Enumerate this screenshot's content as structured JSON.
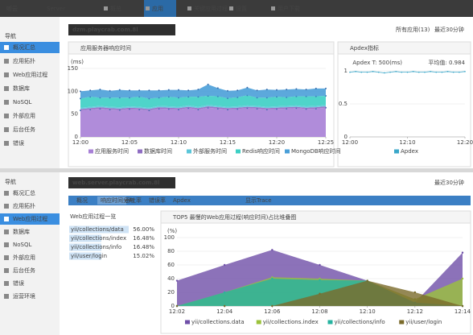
{
  "top": {
    "header": {
      "logo": "听云",
      "product": "Server",
      "nav": [
        "概览",
        "应用",
        "关键应用过程",
        "设置",
        "用户下载"
      ],
      "active_nav": 1
    },
    "sidebar": {
      "title": "导航",
      "items": [
        "概况汇总",
        "应用拓扑",
        "Web应用过程",
        "数据库",
        "NoSQL",
        "外部应用",
        "后台任务",
        "错误"
      ],
      "active": 0
    },
    "app_select": "dzm.playcrab.com.8l",
    "app_filter": "所有应用(13)",
    "time_range": "最近30分钟"
  },
  "bottom": {
    "sidebar": {
      "title": "导航",
      "items": [
        "概况汇总",
        "应用拓扑",
        "Web应用过程",
        "数据库",
        "NoSQL",
        "外部应用",
        "后台任务",
        "错误",
        "运营环境"
      ],
      "active": 2
    },
    "app_select": "web.server.playcrab.com.8l",
    "time_range": "最近30分钟",
    "tabs": [
      "概况",
      "响应时间分布",
      "吞吐率",
      "错误率",
      "Apdex",
      "显示Trace"
    ],
    "active_tab": 1,
    "list": {
      "title": "Web应用过程一览",
      "items": [
        {
          "name": "yii/collections/data",
          "share": "56.00%"
        },
        {
          "name": "yii/collections/index",
          "share": "16.48%"
        },
        {
          "name": "yii/collections/info",
          "share": "16.48%"
        },
        {
          "name": "yii/user/login",
          "share": "15.02%"
        }
      ]
    }
  },
  "chart_data": [
    {
      "type": "stacked_area",
      "title": "应用服务器响应时间",
      "ylabel": "(ms)",
      "categories": [
        "12:00",
        null,
        null,
        null,
        null,
        "12:05",
        null,
        null,
        null,
        null,
        "12:10",
        null,
        null,
        null,
        null,
        "12:15",
        null,
        null,
        null,
        null,
        "12:20",
        null,
        null,
        null,
        null,
        "12:25"
      ],
      "ylim": [
        0,
        150
      ],
      "yticks": [
        0,
        50,
        100,
        150
      ],
      "grid": true,
      "series": [
        {
          "name": "应用服务时间",
          "color": "#a77fd6",
          "values": [
            58,
            60,
            62,
            60,
            59,
            61,
            60,
            58,
            62,
            61,
            60,
            63,
            60,
            64,
            62,
            60,
            61,
            63,
            62,
            60,
            61,
            62,
            63,
            61,
            62,
            64
          ]
        },
        {
          "name": "数据库时间",
          "color": "#8e6cc2",
          "values": [
            3,
            3,
            3,
            3,
            3,
            3,
            3,
            3,
            3,
            3,
            3,
            3,
            3,
            3,
            3,
            3,
            3,
            3,
            3,
            3,
            3,
            3,
            3,
            3,
            3,
            3
          ]
        },
        {
          "name": "外部服务时间",
          "color": "#5bc6d9",
          "values": [
            3,
            3,
            3,
            3,
            3,
            3,
            3,
            3,
            3,
            3,
            3,
            3,
            3,
            3,
            3,
            3,
            3,
            3,
            3,
            3,
            3,
            3,
            3,
            3,
            3,
            3
          ]
        },
        {
          "name": "Redis响应时间",
          "color": "#3ccfc4",
          "values": [
            20,
            22,
            18,
            20,
            21,
            19,
            22,
            20,
            18,
            21,
            20,
            19,
            22,
            20,
            21,
            19,
            20,
            22,
            18,
            20,
            21,
            19,
            20,
            22,
            21,
            20
          ]
        },
        {
          "name": "MongoDB响应时间",
          "color": "#4a9fd8",
          "values": [
            16,
            14,
            18,
            15,
            17,
            16,
            14,
            18,
            16,
            15,
            17,
            14,
            16,
            25,
            18,
            16,
            15,
            17,
            16,
            18,
            15,
            17,
            16,
            15,
            17,
            16
          ]
        }
      ]
    },
    {
      "type": "line",
      "title": "Apdex指标",
      "subtitle": "Apdex T: 500(ms)",
      "summary": "平均值: 0.984",
      "categories": [
        "12:00",
        null,
        null,
        null,
        null,
        null,
        null,
        null,
        null,
        null,
        "12:10",
        null,
        null,
        null,
        null,
        null,
        null,
        null,
        null,
        null,
        "12:20"
      ],
      "ylim": [
        0,
        1
      ],
      "yticks": [
        0,
        0.5,
        1
      ],
      "grid": true,
      "series": [
        {
          "name": "Apdex",
          "color": "#3aa7c9",
          "values": [
            0.98,
            0.99,
            0.98,
            0.98,
            0.99,
            0.98,
            0.97,
            0.98,
            0.99,
            0.98,
            0.98,
            0.99,
            0.98,
            0.98,
            0.99,
            0.98,
            0.98,
            0.99,
            0.98,
            0.98,
            0.99
          ]
        }
      ]
    },
    {
      "type": "overlap_area",
      "title": "TOP5 最慢的Web应用过程(响应时间)占比堆叠图",
      "ylabel": "(%)",
      "categories": [
        "12:02",
        "12:04",
        "12:06",
        "12:08",
        "12:10",
        "12:12",
        "12:14"
      ],
      "ylim": [
        0,
        100
      ],
      "yticks": [
        0,
        20,
        40,
        60,
        80,
        100
      ],
      "grid": true,
      "series": [
        {
          "name": "yii/collections.data",
          "color": "#6f4fa8",
          "values": [
            37,
            60,
            82,
            60,
            37,
            5,
            78
          ]
        },
        {
          "name": "yii/collections.index",
          "color": "#9bc23b",
          "values": [
            0,
            20,
            42,
            40,
            37,
            10,
            40
          ]
        },
        {
          "name": "yii/collections/info",
          "color": "#27b3a0",
          "values": [
            0,
            20,
            40,
            38,
            37,
            5,
            0
          ]
        },
        {
          "name": "yii/user/login",
          "color": "#7a6a2a",
          "values": [
            0,
            0,
            0,
            18,
            37,
            20,
            0
          ]
        }
      ]
    }
  ]
}
